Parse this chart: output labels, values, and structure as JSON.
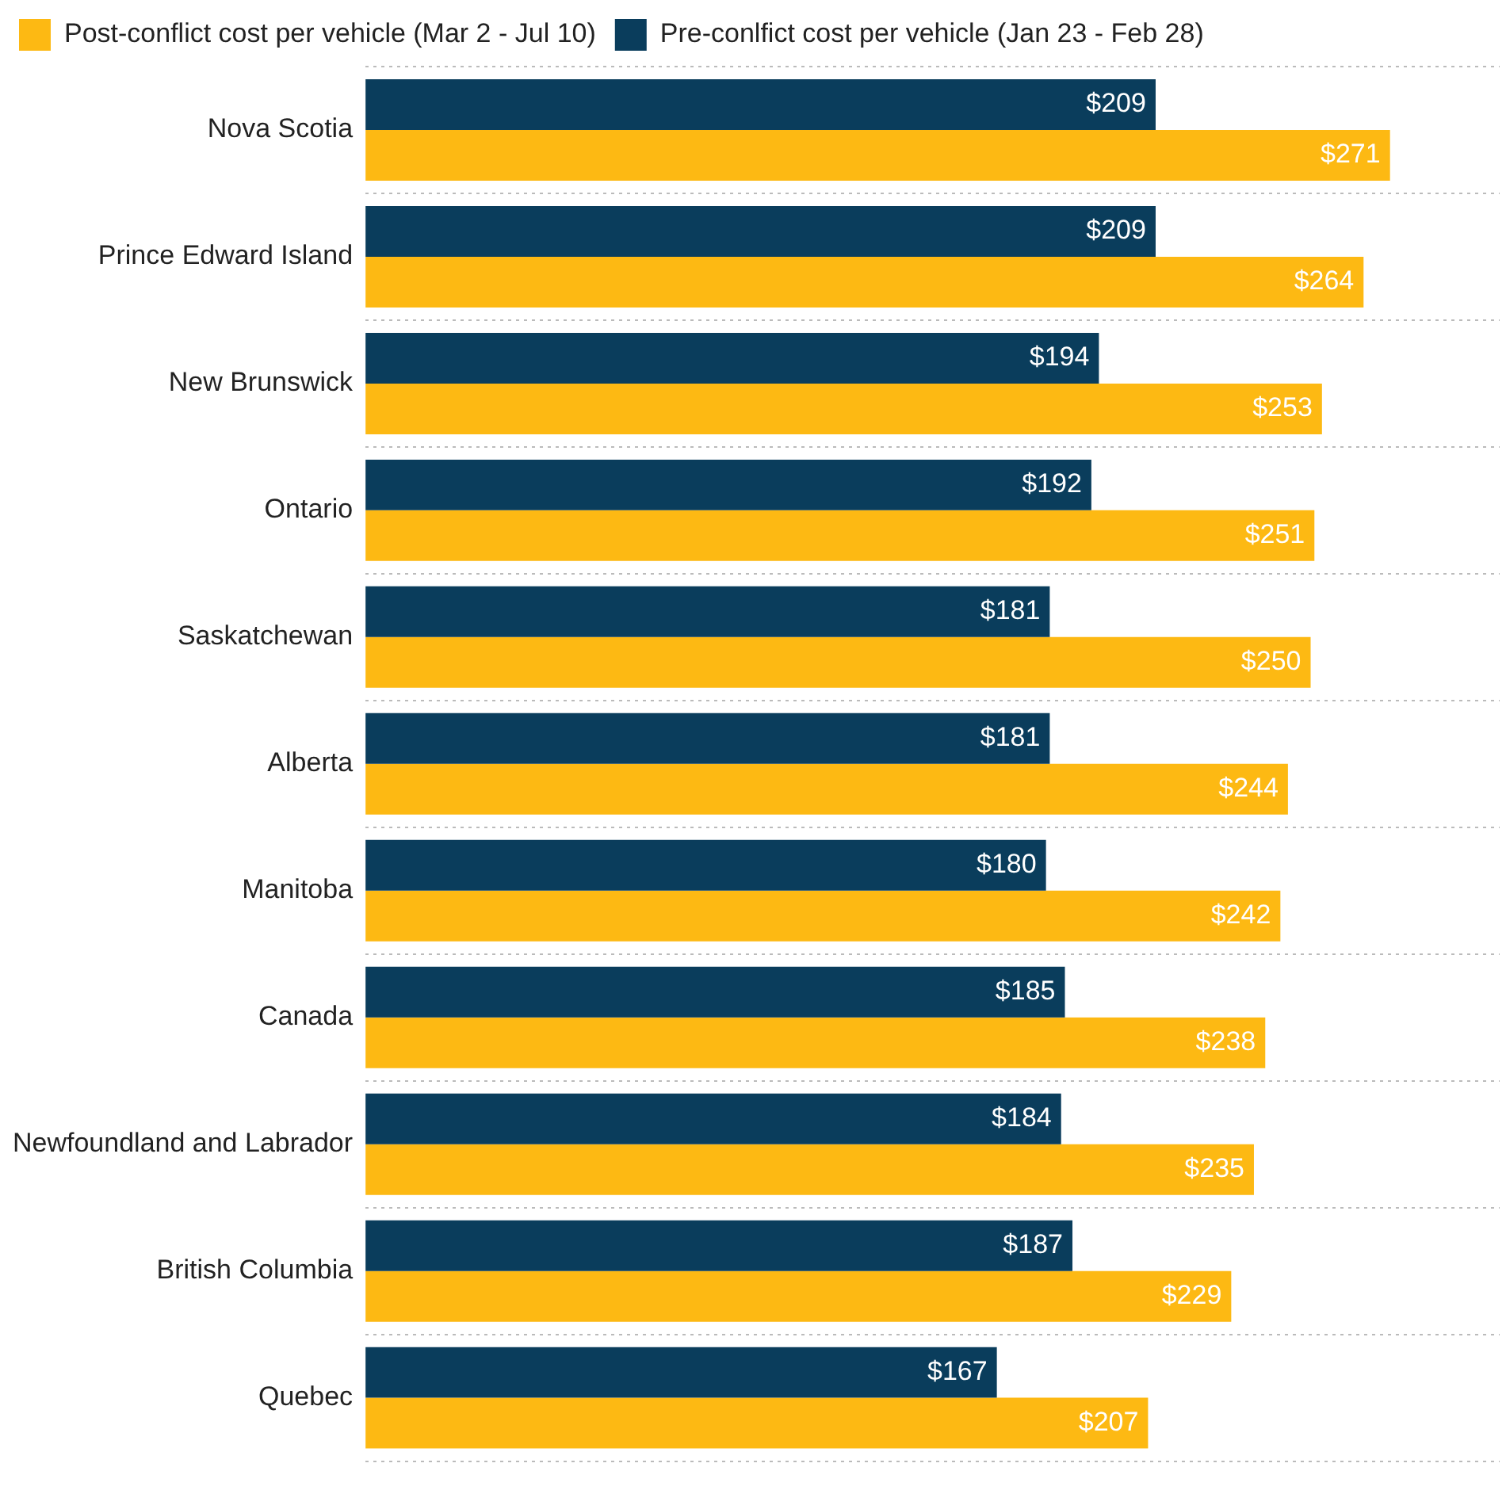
{
  "chart_data": {
    "type": "bar",
    "orientation": "horizontal",
    "legend": "top left",
    "grid": "y",
    "categories": [
      "Nova Scotia",
      "Prince Edward Island",
      "New Brunswick",
      "Ontario",
      "Saskatchewan",
      "Alberta",
      "Manitoba",
      "Canada",
      "Newfoundland and Labrador",
      "British Columbia",
      "Quebec"
    ],
    "series": [
      {
        "name": "Pre-conlfict cost per vehicle (Jan 23 - Feb 28)",
        "color": "#0a3d5c",
        "values": [
          209,
          209,
          194,
          192,
          181,
          181,
          180,
          185,
          184,
          187,
          167
        ],
        "value_labels": [
          "$209",
          "$209",
          "$194",
          "$192",
          "$181",
          "$181",
          "$180",
          "$185",
          "$184",
          "$187",
          "$167"
        ]
      },
      {
        "name": "Post-conflict cost per vehicle (Mar 2 - Jul 10)",
        "color": "#fdb913",
        "values": [
          271,
          264,
          253,
          251,
          250,
          244,
          242,
          238,
          235,
          229,
          207
        ],
        "value_labels": [
          "$271",
          "$264",
          "$253",
          "$251",
          "$250",
          "$244",
          "$242",
          "$238",
          "$235",
          "$229",
          "$207"
        ]
      }
    ]
  }
}
